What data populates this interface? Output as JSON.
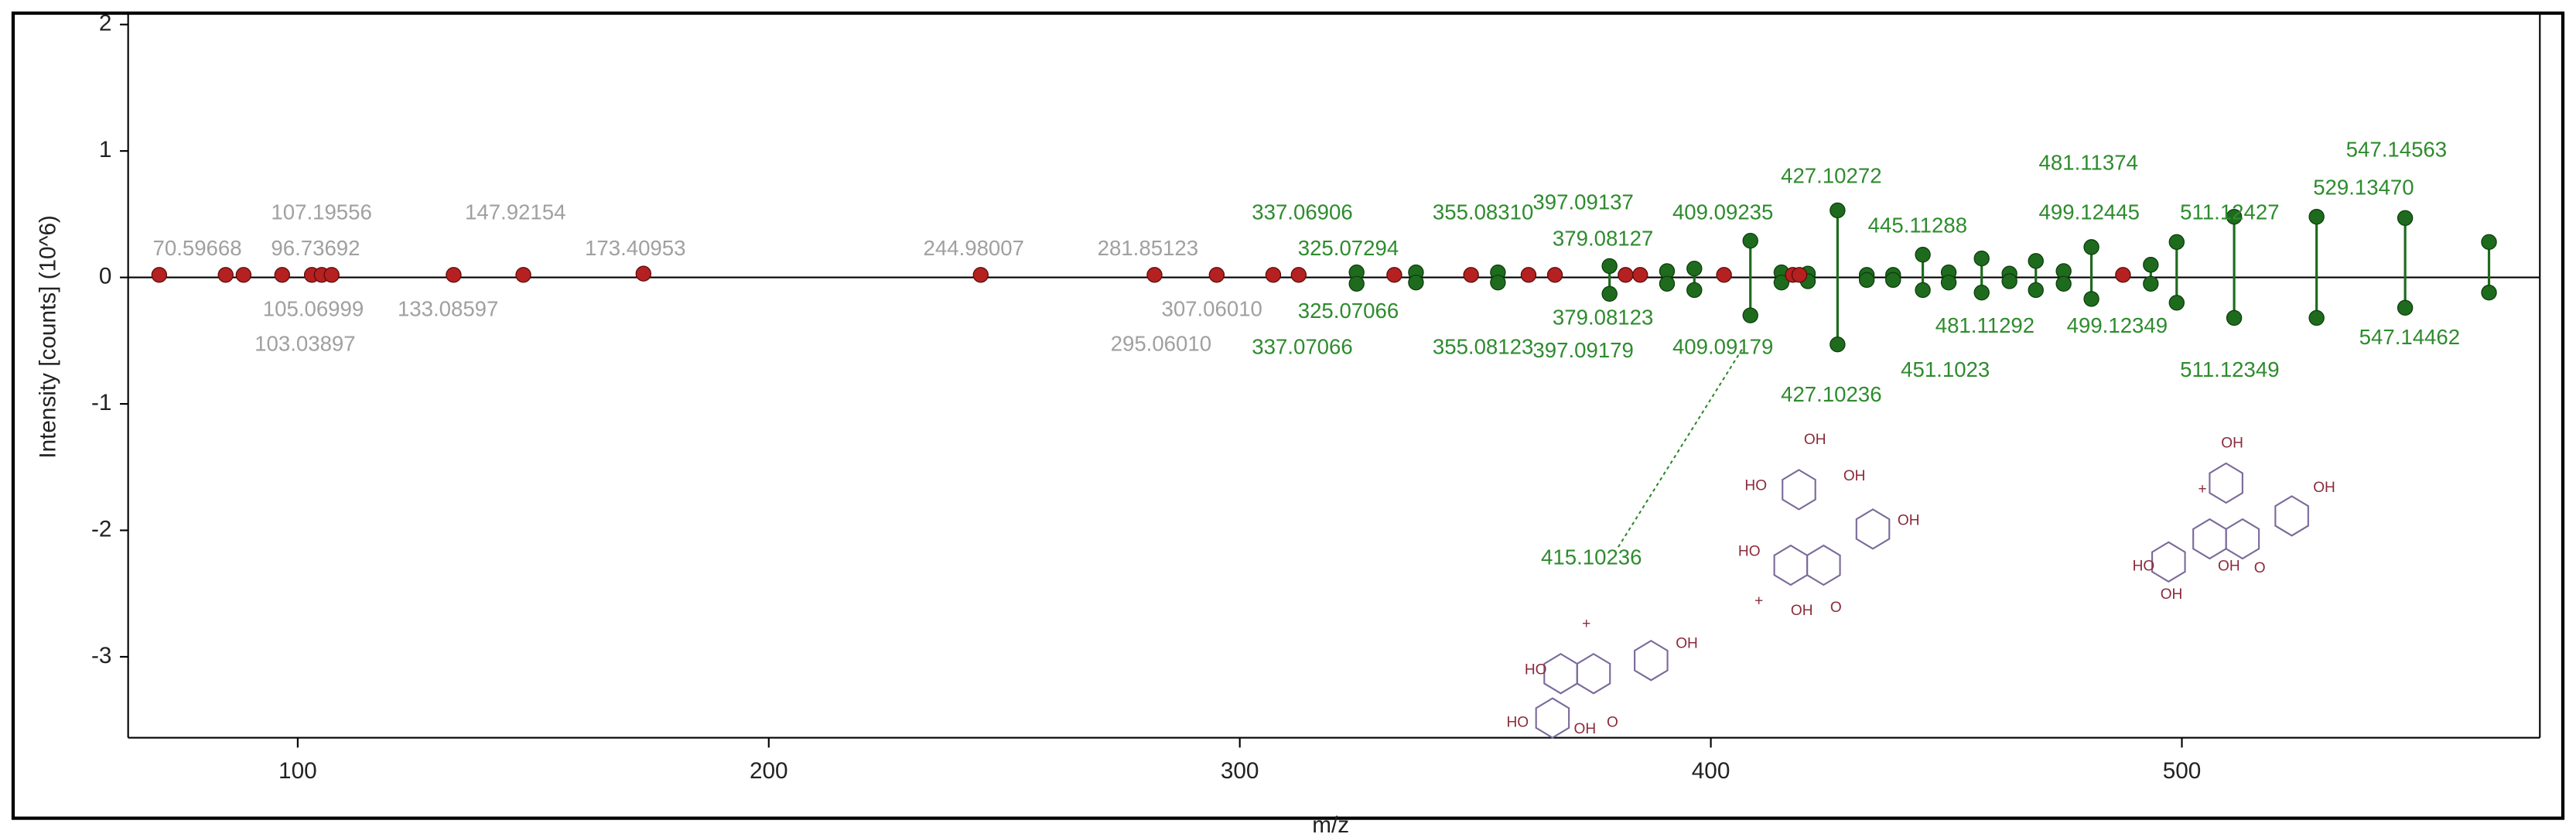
{
  "chart_data": {
    "type": "stick",
    "y_label": "Intensity [counts] (10^6)",
    "x_label": "m/z",
    "xlim": [
      64,
      576
    ],
    "ylim": [
      -3.64,
      2.09
    ],
    "xticks": [
      100,
      200,
      300,
      400,
      500
    ],
    "yticks": [
      2,
      1,
      0,
      -1,
      -2,
      -3
    ],
    "peaks_red": {
      "color": "#b52020",
      "x": [
        70.6,
        84.7,
        88.5,
        96.7,
        103.0,
        105.1,
        107.2,
        133.1,
        147.9,
        173.4,
        245.0,
        281.9,
        295.1,
        307.1,
        312.5,
        332.8,
        349.1,
        361.3,
        366.9,
        381.9,
        385.0,
        402.8,
        417.4,
        418.8,
        487.5
      ],
      "values": [
        0.02,
        0.02,
        0.02,
        0.02,
        0.02,
        0.02,
        0.02,
        0.02,
        0.02,
        0.03,
        0.02,
        0.02,
        0.02,
        0.02,
        0.02,
        0.02,
        0.02,
        0.02,
        0.02,
        0.02,
        0.02,
        0.02,
        0.02,
        0.02,
        0.02
      ]
    },
    "peaks_green": {
      "color": "#1e6b1e",
      "x": [
        324.8,
        337.4,
        354.8,
        378.5,
        390.7,
        396.5,
        408.4,
        415.0,
        420.6,
        426.9,
        433.1,
        438.7,
        445.0,
        450.5,
        457.5,
        463.4,
        469.0,
        474.9,
        480.8,
        493.4,
        498.9,
        511.1,
        528.6,
        547.4,
        565.2
      ],
      "top": [
        0.04,
        0.04,
        0.04,
        0.09,
        0.05,
        0.07,
        0.29,
        0.04,
        0.03,
        0.53,
        0.02,
        0.02,
        0.18,
        0.04,
        0.15,
        0.03,
        0.13,
        0.05,
        0.24,
        0.1,
        0.28,
        0.48,
        0.48,
        0.47,
        0.28
      ],
      "bottom": [
        -0.05,
        -0.04,
        -0.04,
        -0.13,
        -0.05,
        -0.1,
        -0.3,
        -0.04,
        -0.03,
        -0.53,
        -0.02,
        -0.02,
        -0.1,
        -0.04,
        -0.12,
        -0.03,
        -0.1,
        -0.05,
        -0.17,
        -0.05,
        -0.2,
        -0.32,
        -0.32,
        -0.24,
        -0.12
      ]
    },
    "labels_gray": {
      "color": "#a0a0a0",
      "texts": [
        "70.59668",
        "107.19556",
        "96.73692",
        "105.06999",
        "103.03897",
        "133.08597",
        "147.92154",
        "173.40953",
        "244.98007",
        "281.85123",
        "307.06010",
        "295.06010"
      ]
    },
    "labels_green": {
      "color": "#2e8b2e",
      "texts": [
        "337.06906",
        "325.07294",
        "355.08310",
        "397.09137",
        "379.08127",
        "409.09235",
        "427.10272",
        "445.11288",
        "481.11374",
        "511.12427",
        "499.12445",
        "529.13470",
        "547.14563",
        "325.07066",
        "337.07066",
        "355.08123",
        "379.08123",
        "397.09179",
        "409.09179",
        "427.10236",
        "451.1023",
        "481.11292",
        "499.12349",
        "511.12349",
        "547.14462",
        "415.10236"
      ]
    },
    "structures": [
      {
        "atoms": [
          "HO",
          "OH",
          "HO",
          "OH",
          "O",
          "+"
        ]
      },
      {
        "atoms": [
          "HO",
          "OH",
          "OH",
          "HO",
          "OH",
          "OH",
          "O",
          "+"
        ]
      },
      {
        "atoms": [
          "OH",
          "HO",
          "OH",
          "OH",
          "OH",
          "O",
          "+"
        ]
      }
    ]
  }
}
